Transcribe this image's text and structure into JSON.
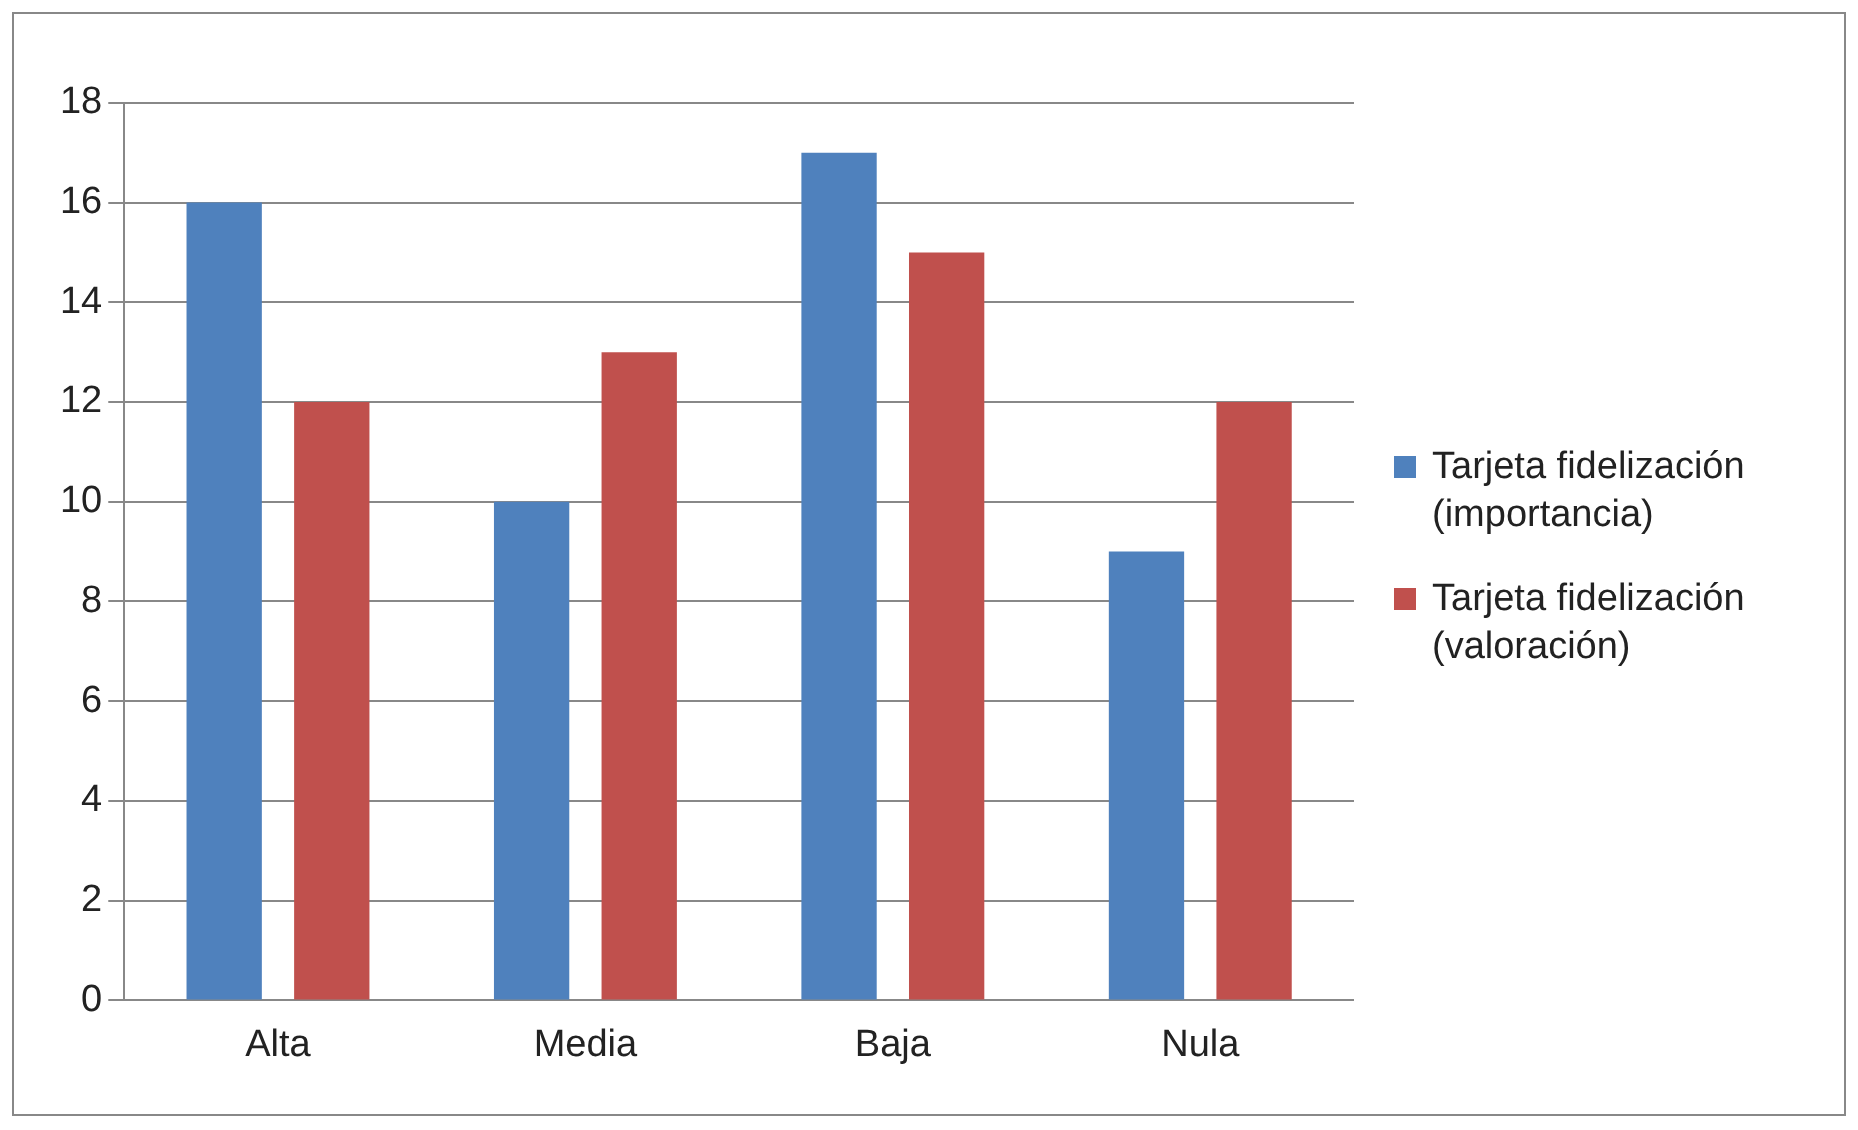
{
  "chart_data": {
    "type": "bar",
    "categories": [
      "Alta",
      "Media",
      "Baja",
      "Nula"
    ],
    "series": [
      {
        "name": "Tarjeta fidelización (importancia)",
        "color": "#4f81bd",
        "values": [
          16,
          10,
          17,
          9
        ]
      },
      {
        "name": "Tarjeta fidelización (valoración)",
        "color": "#c0504d",
        "values": [
          12,
          13,
          15,
          12
        ]
      }
    ],
    "ylim": [
      0,
      18
    ],
    "yticks": [
      0,
      2,
      4,
      6,
      8,
      10,
      12,
      14,
      16,
      18
    ],
    "grid": "y",
    "legend": "right"
  }
}
